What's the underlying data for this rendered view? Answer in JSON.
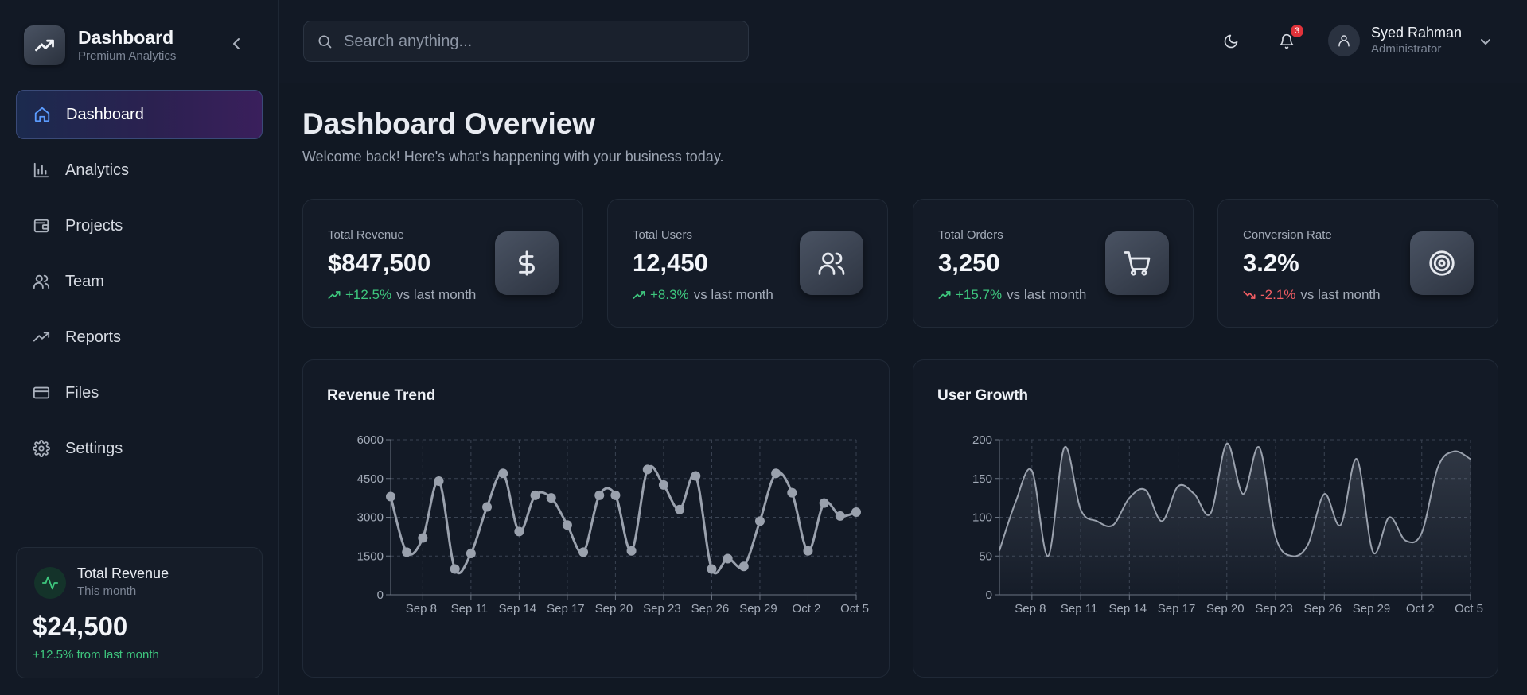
{
  "brand": {
    "title": "Dashboard",
    "subtitle": "Premium Analytics"
  },
  "nav": [
    {
      "label": "Dashboard",
      "icon": "home-icon",
      "active": true
    },
    {
      "label": "Analytics",
      "icon": "bar-chart-icon",
      "active": false
    },
    {
      "label": "Projects",
      "icon": "folder-icon",
      "active": false
    },
    {
      "label": "Team",
      "icon": "users-icon",
      "active": false
    },
    {
      "label": "Reports",
      "icon": "trending-up-icon",
      "active": false
    },
    {
      "label": "Files",
      "icon": "credit-card-icon",
      "active": false
    },
    {
      "label": "Settings",
      "icon": "gear-icon",
      "active": false
    }
  ],
  "sidebar_card": {
    "title": "Total Revenue",
    "subtitle": "This month",
    "value": "$24,500",
    "change": "+12.5% from last month"
  },
  "header": {
    "search_placeholder": "Search anything...",
    "notifications_count": "3",
    "user_name": "Syed Rahman",
    "user_role": "Administrator"
  },
  "page": {
    "title": "Dashboard Overview",
    "subtitle": "Welcome back! Here's what's happening with your business today."
  },
  "stats": [
    {
      "label": "Total Revenue",
      "value": "$847,500",
      "change": "+12.5%",
      "direction": "up",
      "suffix": "vs last month",
      "icon": "dollar-icon"
    },
    {
      "label": "Total Users",
      "value": "12,450",
      "change": "+8.3%",
      "direction": "up",
      "suffix": "vs last month",
      "icon": "users-icon"
    },
    {
      "label": "Total Orders",
      "value": "3,250",
      "change": "+15.7%",
      "direction": "up",
      "suffix": "vs last month",
      "icon": "cart-icon"
    },
    {
      "label": "Conversion Rate",
      "value": "3.2%",
      "change": "-2.1%",
      "direction": "down",
      "suffix": "vs last month",
      "icon": "target-icon"
    }
  ],
  "colors": {
    "up": "#3ec77e",
    "down": "#f05d63",
    "accent": "#5b9cff",
    "line": "#9aa1ad"
  },
  "chart_data": [
    {
      "type": "line",
      "title": "Revenue Trend",
      "x_tick_labels": [
        "Sep 8",
        "Sep 11",
        "Sep 14",
        "Sep 17",
        "Sep 20",
        "Sep 23",
        "Sep 26",
        "Sep 29",
        "Oct 2",
        "Oct 5"
      ],
      "ylim": [
        0,
        6000
      ],
      "y_ticks": [
        0,
        1500,
        3000,
        4500,
        6000
      ],
      "grid": true,
      "markers": true,
      "series": [
        {
          "values": [
            3800,
            1650,
            2200,
            4400,
            1000,
            1600,
            3400,
            4700,
            2450,
            3850,
            3750,
            2700,
            1650,
            3850,
            3850,
            1700,
            4850,
            4250,
            3300,
            4600,
            1000,
            1400,
            1100,
            2850,
            4700,
            3950,
            1700,
            3550,
            3050,
            3200
          ]
        }
      ]
    },
    {
      "type": "area",
      "title": "User Growth",
      "x_tick_labels": [
        "Sep 8",
        "Sep 11",
        "Sep 14",
        "Sep 17",
        "Sep 20",
        "Sep 23",
        "Sep 26",
        "Sep 29",
        "Oct 2",
        "Oct 5"
      ],
      "ylim": [
        0,
        200
      ],
      "y_ticks": [
        0,
        50,
        100,
        150,
        200
      ],
      "grid": true,
      "smooth": true,
      "series": [
        {
          "values": [
            57,
            120,
            160,
            50,
            190,
            110,
            95,
            90,
            125,
            135,
            95,
            140,
            130,
            105,
            195,
            130,
            190,
            75,
            50,
            65,
            130,
            90,
            175,
            55,
            100,
            70,
            80,
            165,
            185,
            175
          ]
        }
      ]
    }
  ]
}
